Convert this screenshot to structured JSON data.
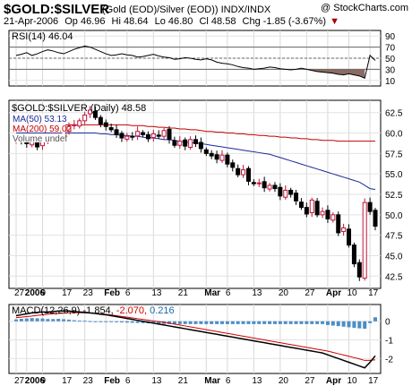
{
  "header": {
    "symbol": "$GOLD:$SILVER",
    "description": "(Gold (EOD)/Silver (EOD))  INDX/INDX",
    "copyright": "@ StockCharts.com",
    "date": "21-Apr-2006",
    "open": "Op 46.96",
    "high": "Hi 48.64",
    "low": "Lo 46.80",
    "close": "Cl 48.58",
    "change": "Chg -1.85 (-3.67%)",
    "change_arrow": "▼"
  },
  "x_axis_labels": [
    "27",
    "2006",
    "9",
    "17",
    "23",
    "Feb",
    "6",
    "13",
    "21",
    "Mar",
    "6",
    "13",
    "20",
    "27",
    "Apr",
    "10",
    "17"
  ],
  "chart_data": [
    {
      "type": "line",
      "title": "RSI(14) 46.04",
      "ylim": [
        0,
        100
      ],
      "y_ticks": [
        "90",
        "70",
        "50",
        "30",
        "10"
      ],
      "reference_lines": [
        70,
        50,
        30
      ],
      "series": [
        {
          "name": "RSI(14)",
          "values": [
            55,
            57,
            60,
            55,
            58,
            62,
            65,
            63,
            60,
            58,
            62,
            66,
            69,
            72,
            70,
            66,
            62,
            58,
            55,
            56,
            58,
            56,
            55,
            52,
            53,
            55,
            57,
            54,
            52,
            51,
            48,
            49,
            51,
            50,
            48,
            47,
            49,
            47,
            43,
            41,
            40,
            38,
            35,
            33,
            32,
            30,
            31,
            32,
            34,
            33,
            31,
            30,
            29,
            30,
            32,
            30,
            28,
            26,
            25,
            24,
            23,
            21,
            20,
            22,
            20,
            18,
            14,
            55,
            46
          ]
        }
      ]
    },
    {
      "type": "candlestick",
      "title": "$GOLD:$SILVER (Daily) 48.58",
      "ylim": [
        41,
        64
      ],
      "y_ticks": [
        "62.5",
        "60.0",
        "57.5",
        "55.0",
        "52.5",
        "50.0",
        "47.5",
        "45.0",
        "42.5"
      ],
      "legend": [
        "MA(50) 53.13",
        "MA(200) 59.02",
        "Volume undef"
      ],
      "close": [
        59.2,
        59.0,
        58.7,
        59.0,
        58.3,
        59.1,
        59.3,
        59.6,
        59.9,
        60.2,
        60.8,
        61.0,
        61.5,
        62.2,
        62.8,
        61.9,
        61.1,
        60.8,
        60.4,
        59.8,
        59.4,
        59.6,
        59.5,
        60.2,
        59.8,
        59.3,
        59.9,
        59.6,
        60.3,
        59.2,
        58.5,
        59.0,
        58.4,
        59.2,
        58.7,
        58.1,
        57.5,
        57.2,
        56.8,
        57.3,
        56.2,
        55.8,
        54.9,
        55.5,
        54.1,
        53.8,
        53.9,
        53.3,
        53.6,
        53.2,
        52.3,
        53.0,
        52.5,
        51.7,
        50.9,
        50.1,
        51.8,
        50.0,
        50.4,
        49.5,
        50.0,
        47.8,
        48.4,
        46.3,
        44.0,
        42.4,
        51.5,
        50.4,
        48.6
      ],
      "series": [
        {
          "name": "MA(200)",
          "values": [
            61.0,
            61.0,
            61.0,
            61.0,
            61.0,
            61.0,
            61.0,
            61.0,
            61.0,
            61.0,
            61.0,
            61.0,
            61.0,
            61.0,
            61.0,
            61.0,
            61.0,
            61.0,
            61.0,
            61.0,
            61.0,
            61.0,
            60.9,
            60.9,
            60.9,
            60.8,
            60.8,
            60.7,
            60.7,
            60.6,
            60.6,
            60.5,
            60.5,
            60.4,
            60.4,
            60.3,
            60.2,
            60.2,
            60.1,
            60.1,
            60.0,
            60.0,
            59.9,
            59.9,
            59.8,
            59.8,
            59.7,
            59.7,
            59.6,
            59.6,
            59.5,
            59.5,
            59.4,
            59.4,
            59.3,
            59.3,
            59.2,
            59.2,
            59.1,
            59.1,
            59.1,
            59.0,
            59.0,
            59.0,
            59.0,
            59.0,
            59.0,
            59.0,
            59.0
          ]
        },
        {
          "name": "MA(50)",
          "values": [
            60.0,
            60.0,
            60.0,
            60.0,
            60.0,
            60.0,
            60.0,
            60.0,
            60.0,
            60.0,
            60.0,
            60.0,
            60.0,
            60.0,
            60.0,
            60.0,
            59.9,
            59.9,
            59.8,
            59.8,
            59.7,
            59.7,
            59.6,
            59.6,
            59.5,
            59.4,
            59.4,
            59.3,
            59.2,
            59.2,
            59.1,
            59.0,
            58.9,
            58.8,
            58.8,
            58.7,
            58.6,
            58.5,
            58.4,
            58.3,
            58.2,
            58.1,
            58.0,
            57.9,
            57.8,
            57.7,
            57.6,
            57.5,
            57.4,
            57.2,
            57.0,
            56.8,
            56.6,
            56.4,
            56.2,
            56.0,
            55.8,
            55.6,
            55.4,
            55.2,
            55.0,
            54.8,
            54.6,
            54.4,
            54.2,
            54.0,
            53.6,
            53.2,
            53.1
          ]
        }
      ]
    },
    {
      "type": "line",
      "title": "MACD(12,26,9)",
      "title_values": [
        "-1.854",
        "-2.070",
        "0.216"
      ],
      "ylim": [
        -2.8,
        0.9
      ],
      "y_ticks": [
        "0",
        "-1",
        "-2"
      ],
      "series": [
        {
          "name": "MACD",
          "values": [
            0.3,
            0.35,
            0.4,
            0.45,
            0.48,
            0.5,
            0.5,
            0.52,
            0.55,
            0.55,
            0.55,
            0.52,
            0.5,
            0.48,
            0.45,
            0.42,
            0.38,
            0.35,
            0.3,
            0.25,
            0.2,
            0.15,
            0.1,
            0.05,
            0.0,
            -0.05,
            -0.1,
            -0.15,
            -0.2,
            -0.25,
            -0.3,
            -0.35,
            -0.4,
            -0.45,
            -0.5,
            -0.55,
            -0.6,
            -0.65,
            -0.7,
            -0.75,
            -0.8,
            -0.85,
            -0.9,
            -0.95,
            -1.0,
            -1.05,
            -1.1,
            -1.15,
            -1.2,
            -1.25,
            -1.3,
            -1.35,
            -1.4,
            -1.45,
            -1.5,
            -1.55,
            -1.6,
            -1.65,
            -1.7,
            -1.8,
            -1.9,
            -2.0,
            -2.1,
            -2.2,
            -2.3,
            -2.4,
            -2.5,
            -2.2,
            -1.854
          ]
        },
        {
          "name": "Signal",
          "values": [
            0.2,
            0.22,
            0.25,
            0.28,
            0.32,
            0.35,
            0.38,
            0.4,
            0.42,
            0.44,
            0.46,
            0.46,
            0.46,
            0.45,
            0.44,
            0.42,
            0.4,
            0.37,
            0.34,
            0.3,
            0.26,
            0.22,
            0.18,
            0.14,
            0.1,
            0.06,
            0.02,
            -0.02,
            -0.06,
            -0.1,
            -0.15,
            -0.2,
            -0.25,
            -0.3,
            -0.35,
            -0.4,
            -0.45,
            -0.5,
            -0.55,
            -0.6,
            -0.65,
            -0.7,
            -0.75,
            -0.8,
            -0.85,
            -0.9,
            -0.95,
            -1.0,
            -1.05,
            -1.1,
            -1.15,
            -1.2,
            -1.25,
            -1.3,
            -1.35,
            -1.4,
            -1.45,
            -1.5,
            -1.55,
            -1.6,
            -1.67,
            -1.74,
            -1.81,
            -1.88,
            -1.95,
            -2.02,
            -2.1,
            -2.1,
            -2.07
          ]
        }
      ]
    }
  ]
}
